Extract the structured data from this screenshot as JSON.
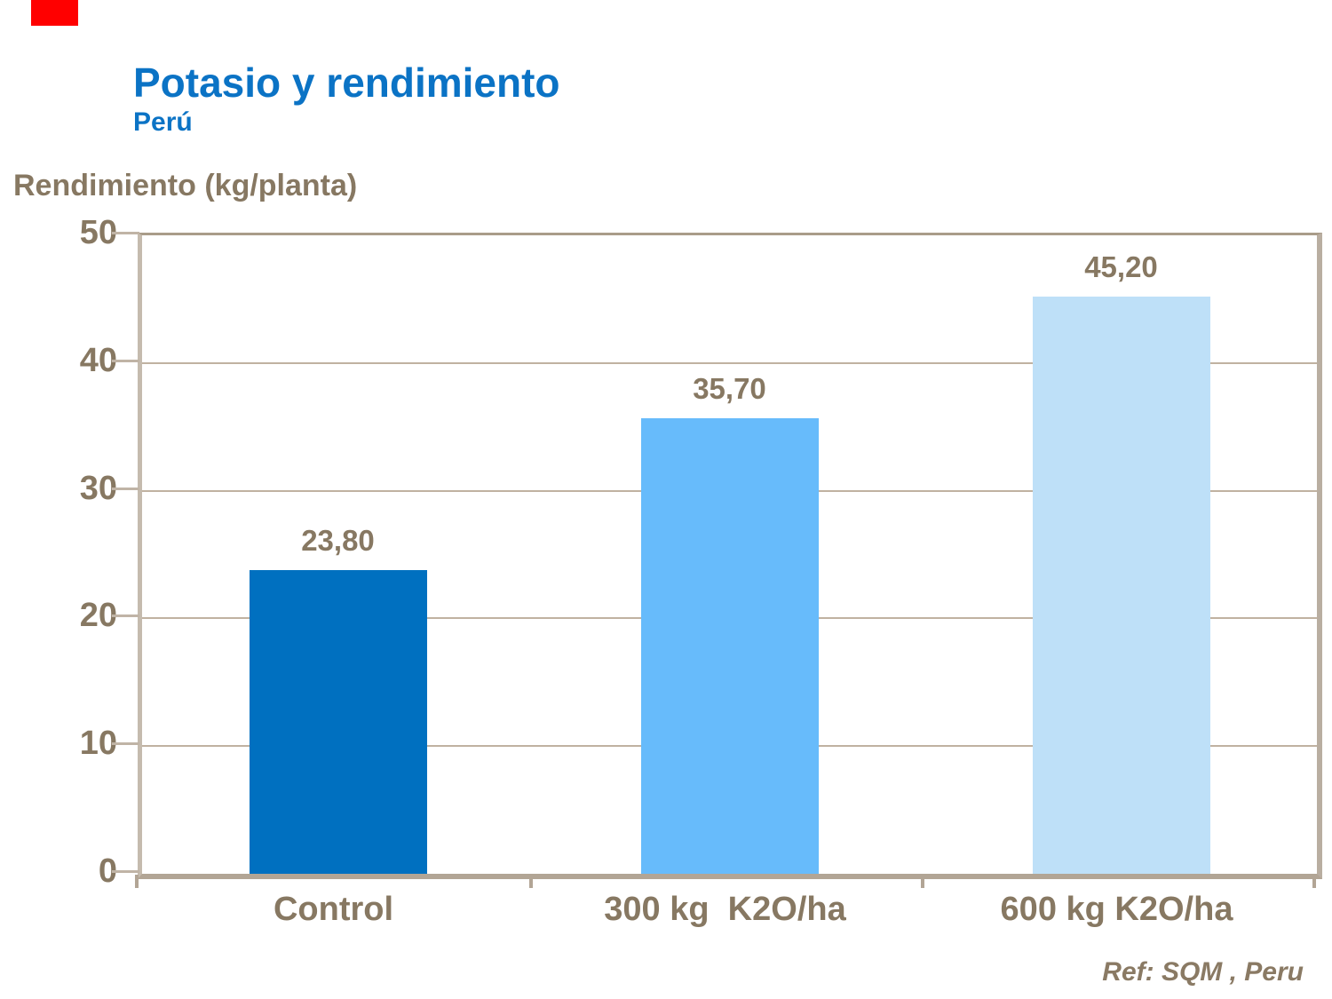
{
  "accent": {
    "red_bar_color": "#ff0000"
  },
  "header": {
    "title": "Potasio y rendimiento",
    "subtitle": "Perú",
    "title_color": "#0b73c5"
  },
  "footer": {
    "ref": "Ref: SQM , Peru"
  },
  "colors": {
    "text_brown": "#877862",
    "axis_line": "#b2a595",
    "gridline": "#c0b2a1"
  },
  "chart_data": {
    "type": "bar",
    "title": "Potasio y rendimiento",
    "subtitle": "Perú",
    "ylabel": "Rendimiento (kg/planta)",
    "xlabel": "",
    "categories": [
      "Control",
      "300 kg  K2O/ha",
      "600 kg K2O/ha"
    ],
    "values": [
      23.8,
      35.7,
      45.2
    ],
    "value_labels": [
      "23,80",
      "35,70",
      "45,20"
    ],
    "bar_colors": [
      "#0070c0",
      "#67bbfb",
      "#bee0f8"
    ],
    "ylim": [
      0,
      50
    ],
    "yticks": [
      0,
      10,
      20,
      30,
      40,
      50
    ],
    "grid": true,
    "legend": false,
    "reference": "Ref: SQM , Peru"
  }
}
